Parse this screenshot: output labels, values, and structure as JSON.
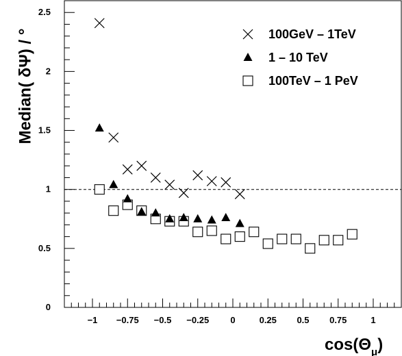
{
  "chart_data": {
    "type": "scatter",
    "xlabel": "cos(Θ",
    "xlabel_sub": "μ",
    "xlabel_close": ")",
    "ylabel": "Median( δΨ) / °",
    "xlim": [
      -1.2,
      1.2
    ],
    "ylim": [
      0,
      2.6
    ],
    "x_ticks": [
      {
        "value": -1,
        "label": "−1"
      },
      {
        "value": -0.75,
        "label": "−0.75"
      },
      {
        "value": -0.5,
        "label": "−0.5"
      },
      {
        "value": -0.25,
        "label": "−0.25"
      },
      {
        "value": 0,
        "label": "0"
      },
      {
        "value": 0.25,
        "label": "0.25"
      },
      {
        "value": 0.5,
        "label": "0.5"
      },
      {
        "value": 0.75,
        "label": "0.75"
      },
      {
        "value": 1,
        "label": "1"
      }
    ],
    "y_ticks": [
      {
        "value": 0,
        "label": "0"
      },
      {
        "value": 0.5,
        "label": "0.5"
      },
      {
        "value": 1,
        "label": "1"
      },
      {
        "value": 1.5,
        "label": "1.5"
      },
      {
        "value": 2,
        "label": "2"
      },
      {
        "value": 2.5,
        "label": "2.5"
      }
    ],
    "reference_line": {
      "y": 1,
      "style": "dashed"
    },
    "legend_position": "top-right",
    "series": [
      {
        "name": "100GeV – 1TeV",
        "marker": "cross",
        "points": [
          {
            "x": -0.95,
            "y": 2.41
          },
          {
            "x": -0.85,
            "y": 1.44
          },
          {
            "x": -0.75,
            "y": 1.17
          },
          {
            "x": -0.65,
            "y": 1.2
          },
          {
            "x": -0.55,
            "y": 1.1
          },
          {
            "x": -0.45,
            "y": 1.04
          },
          {
            "x": -0.35,
            "y": 0.97
          },
          {
            "x": -0.25,
            "y": 1.12
          },
          {
            "x": -0.15,
            "y": 1.07
          },
          {
            "x": -0.05,
            "y": 1.06
          },
          {
            "x": 0.05,
            "y": 0.96
          }
        ]
      },
      {
        "name": "1 – 10 TeV",
        "marker": "triangle",
        "points": [
          {
            "x": -0.95,
            "y": 1.52
          },
          {
            "x": -0.85,
            "y": 1.04
          },
          {
            "x": -0.75,
            "y": 0.92
          },
          {
            "x": -0.65,
            "y": 0.81
          },
          {
            "x": -0.55,
            "y": 0.8
          },
          {
            "x": -0.45,
            "y": 0.75
          },
          {
            "x": -0.35,
            "y": 0.76
          },
          {
            "x": -0.25,
            "y": 0.75
          },
          {
            "x": -0.15,
            "y": 0.74
          },
          {
            "x": -0.05,
            "y": 0.76
          },
          {
            "x": 0.05,
            "y": 0.71
          }
        ]
      },
      {
        "name": "100TeV – 1 PeV",
        "marker": "square",
        "points": [
          {
            "x": -0.95,
            "y": 1.0
          },
          {
            "x": -0.85,
            "y": 0.82
          },
          {
            "x": -0.75,
            "y": 0.87
          },
          {
            "x": -0.65,
            "y": 0.82
          },
          {
            "x": -0.55,
            "y": 0.75
          },
          {
            "x": -0.45,
            "y": 0.73
          },
          {
            "x": -0.35,
            "y": 0.73
          },
          {
            "x": -0.25,
            "y": 0.64
          },
          {
            "x": -0.15,
            "y": 0.65
          },
          {
            "x": -0.05,
            "y": 0.58
          },
          {
            "x": 0.05,
            "y": 0.6
          },
          {
            "x": 0.15,
            "y": 0.64
          },
          {
            "x": 0.25,
            "y": 0.54
          },
          {
            "x": 0.35,
            "y": 0.58
          },
          {
            "x": 0.45,
            "y": 0.58
          },
          {
            "x": 0.55,
            "y": 0.5
          },
          {
            "x": 0.65,
            "y": 0.57
          },
          {
            "x": 0.75,
            "y": 0.57
          },
          {
            "x": 0.85,
            "y": 0.62
          }
        ]
      }
    ]
  }
}
